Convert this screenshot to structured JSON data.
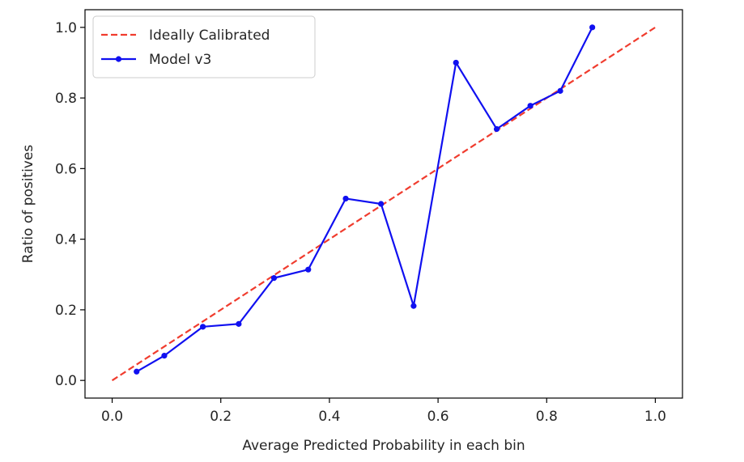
{
  "chart_data": {
    "type": "line",
    "xlabel": "Average Predicted Probability in each bin",
    "ylabel": "Ratio of positives",
    "xlim": [
      -0.05,
      1.05
    ],
    "ylim": [
      -0.05,
      1.05
    ],
    "xticks": [
      0.0,
      0.2,
      0.4,
      0.6,
      0.8,
      1.0
    ],
    "xtick_labels": [
      "0.0",
      "0.2",
      "0.4",
      "0.6",
      "0.8",
      "1.0"
    ],
    "yticks": [
      0.0,
      0.2,
      0.4,
      0.6,
      0.8,
      1.0
    ],
    "ytick_labels": [
      "0.0",
      "0.2",
      "0.4",
      "0.6",
      "0.8",
      "1.0"
    ],
    "grid": false,
    "legend_position": "top-left",
    "series": [
      {
        "name": "Ideally Calibrated",
        "style": "dashed",
        "color": "#f03c2e",
        "marker": "none",
        "x": [
          0.0,
          1.0
        ],
        "y": [
          0.0,
          1.0
        ]
      },
      {
        "name": "Model v3",
        "style": "solid",
        "color": "#1010f0",
        "marker": "dot",
        "x": [
          0.045,
          0.096,
          0.167,
          0.233,
          0.298,
          0.361,
          0.43,
          0.495,
          0.555,
          0.633,
          0.708,
          0.77,
          0.825,
          0.884
        ],
        "y": [
          0.025,
          0.07,
          0.152,
          0.16,
          0.29,
          0.314,
          0.515,
          0.5,
          0.211,
          0.9,
          0.712,
          0.778,
          0.82,
          1.0
        ]
      }
    ]
  }
}
